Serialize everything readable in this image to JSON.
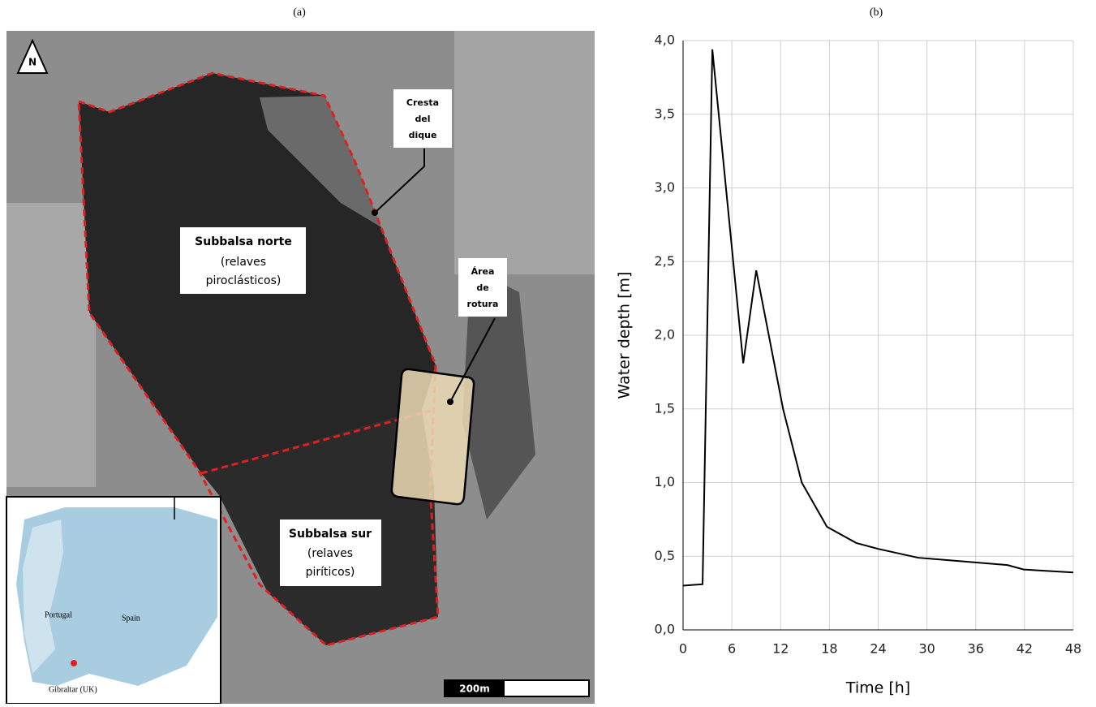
{
  "panels": {
    "a": "(a)",
    "b": "(b)"
  },
  "map": {
    "north": "N",
    "scale": "200m",
    "norte": [
      "Subbalsa norte",
      "(relaves",
      "piroclásticos)"
    ],
    "sur": [
      "Subbalsa sur",
      "(relaves",
      "piríticos)"
    ],
    "cresta": [
      "Cresta",
      "del",
      "dique"
    ],
    "rotura": [
      "Área",
      "de",
      "rotura"
    ],
    "inset": {
      "portugal": "Portugal",
      "spain": "Spain",
      "gibraltar": "Gibraltar (UK)"
    }
  },
  "chart_data": {
    "type": "line",
    "color": "#000000",
    "grid": true,
    "xlabel": "Time [h]",
    "ylabel": "Water depth [m]",
    "x": [
      0,
      2.4,
      3.6,
      7.4,
      9.0,
      12.3,
      14.6,
      17.7,
      21.3,
      24,
      28.9,
      35.5,
      39.9,
      41.9,
      48
    ],
    "values": [
      0.3,
      0.31,
      3.94,
      1.81,
      2.44,
      1.5,
      1.0,
      0.7,
      0.59,
      0.55,
      0.49,
      0.46,
      0.44,
      0.41,
      0.39
    ],
    "xlim": [
      0,
      48
    ],
    "xticks": [
      0,
      6,
      12,
      18,
      24,
      30,
      36,
      42,
      48
    ],
    "ylim": [
      0,
      4
    ],
    "yticks": [
      {
        "value": 0,
        "label": "0,0"
      },
      {
        "value": 0.5,
        "label": "0,5"
      },
      {
        "value": 1,
        "label": "1,0"
      },
      {
        "value": 1.5,
        "label": "1,5"
      },
      {
        "value": 2,
        "label": "2,0"
      },
      {
        "value": 2.5,
        "label": "2,5"
      },
      {
        "value": 3,
        "label": "3,0"
      },
      {
        "value": 3.5,
        "label": "3,5"
      },
      {
        "value": 4,
        "label": "4,0"
      }
    ]
  }
}
